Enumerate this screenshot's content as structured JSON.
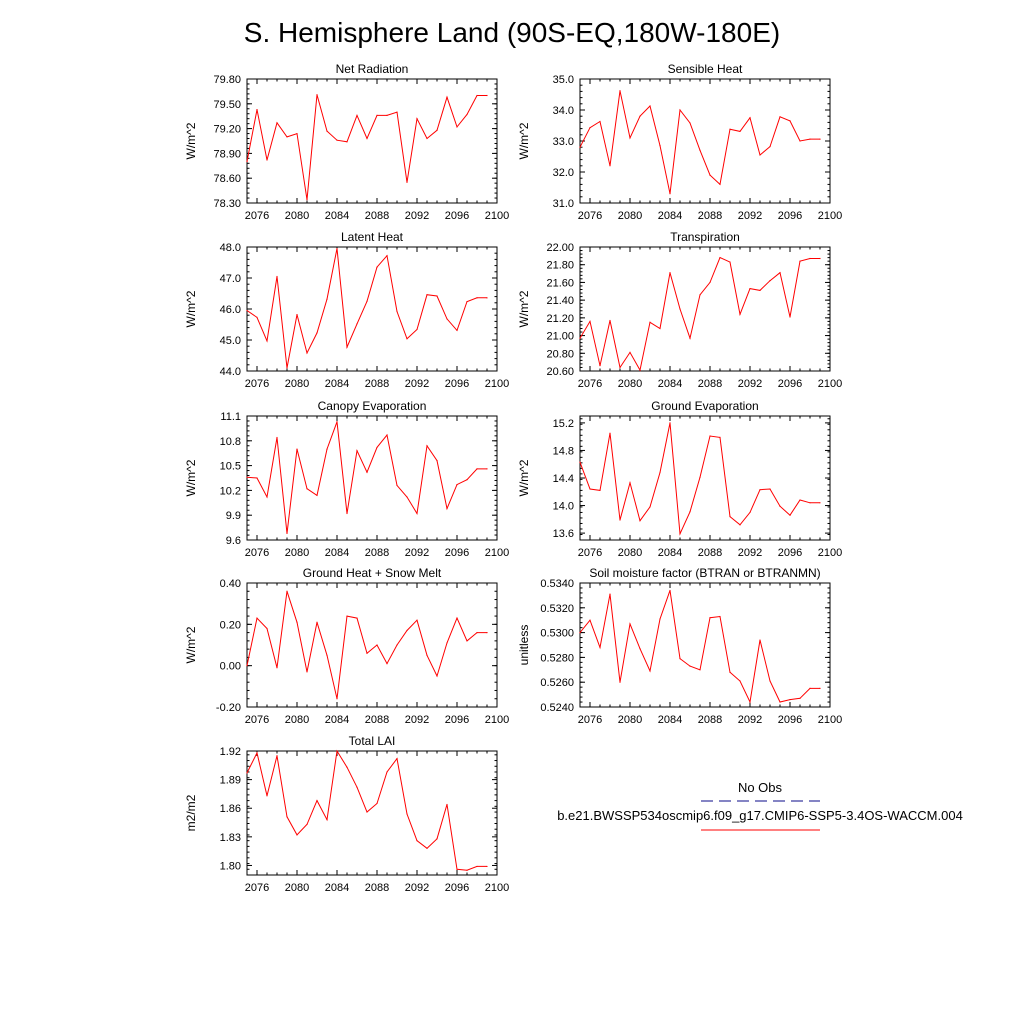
{
  "figure": {
    "title": "S. Hemisphere Land (90S-EQ,180W-180E)"
  },
  "legend": {
    "obs_label": "No Obs",
    "run_label": "b.e21.BWSSP534oscmip6.f09_g17.CMIP6-SSP5-3.4OS-WACCM.004",
    "obs_color": "#3a3aa0",
    "run_color": "#ff0000"
  },
  "chart_data": [
    {
      "type": "line",
      "title": "Net Radiation",
      "ylabel": "W/m^2",
      "xlim": [
        2075,
        2100
      ],
      "ylim": [
        78.3,
        79.8
      ],
      "yticks": [
        "78.30",
        "78.60",
        "78.90",
        "79.20",
        "79.50",
        "79.80"
      ],
      "xticks": [
        "2076",
        "2080",
        "2084",
        "2088",
        "2092",
        "2096",
        "2100"
      ],
      "series": [
        {
          "name": "b.e21.BWSSP534oscmip6.f09_g17.CMIP6-SSP5-3.4OS-WACCM.004",
          "x": [
            2075,
            2076,
            2077,
            2078,
            2079,
            2080,
            2081,
            2082,
            2083,
            2084,
            2085,
            2086,
            2087,
            2088,
            2089,
            2090,
            2091,
            2092,
            2093,
            2094,
            2095,
            2096,
            2097,
            2098,
            2099
          ],
          "values": [
            78.8,
            79.43,
            78.82,
            79.27,
            79.1,
            79.14,
            78.34,
            79.61,
            79.17,
            79.06,
            79.04,
            79.36,
            79.08,
            79.36,
            79.36,
            79.4,
            78.55,
            79.32,
            79.08,
            79.18,
            79.58,
            79.22,
            79.37,
            79.6,
            79.6
          ]
        }
      ]
    },
    {
      "type": "line",
      "title": "Sensible Heat",
      "ylabel": "W/m^2",
      "xlim": [
        2075,
        2100
      ],
      "ylim": [
        31.0,
        35.0
      ],
      "yticks": [
        "31.0",
        "32.0",
        "33.0",
        "34.0",
        "35.0"
      ],
      "xticks": [
        "2076",
        "2080",
        "2084",
        "2088",
        "2092",
        "2096",
        "2100"
      ],
      "series": [
        {
          "name": "b.e21.BWSSP534oscmip6.f09_g17.CMIP6-SSP5-3.4OS-WACCM.004",
          "x": [
            2075,
            2076,
            2077,
            2078,
            2079,
            2080,
            2081,
            2082,
            2083,
            2084,
            2085,
            2086,
            2087,
            2088,
            2089,
            2090,
            2091,
            2092,
            2093,
            2094,
            2095,
            2096,
            2097,
            2098,
            2099
          ],
          "values": [
            32.8,
            33.43,
            33.63,
            32.2,
            34.62,
            33.1,
            33.8,
            34.13,
            32.85,
            31.3,
            34.0,
            33.58,
            32.7,
            31.9,
            31.6,
            33.38,
            33.31,
            33.75,
            32.55,
            32.82,
            33.78,
            33.65,
            33.0,
            33.06,
            33.06
          ]
        }
      ]
    },
    {
      "type": "line",
      "title": "Latent Heat",
      "ylabel": "W/m^2",
      "xlim": [
        2075,
        2100
      ],
      "ylim": [
        44.0,
        48.0
      ],
      "yticks": [
        "44.0",
        "45.0",
        "46.0",
        "47.0",
        "48.0"
      ],
      "xticks": [
        "2076",
        "2080",
        "2084",
        "2088",
        "2092",
        "2096",
        "2100"
      ],
      "series": [
        {
          "name": "b.e21.BWSSP534oscmip6.f09_g17.CMIP6-SSP5-3.4OS-WACCM.004",
          "x": [
            2075,
            2076,
            2077,
            2078,
            2079,
            2080,
            2081,
            2082,
            2083,
            2084,
            2085,
            2086,
            2087,
            2088,
            2089,
            2090,
            2091,
            2092,
            2093,
            2094,
            2095,
            2096,
            2097,
            2098,
            2099
          ],
          "values": [
            45.95,
            45.73,
            44.97,
            47.05,
            44.1,
            45.82,
            44.58,
            45.23,
            46.32,
            47.95,
            44.77,
            45.52,
            46.25,
            47.35,
            47.72,
            45.92,
            45.04,
            45.34,
            46.46,
            46.42,
            45.68,
            45.31,
            46.24,
            46.36,
            46.36
          ]
        }
      ]
    },
    {
      "type": "line",
      "title": "Transpiration",
      "ylabel": "W/m^2",
      "xlim": [
        2075,
        2100
      ],
      "ylim": [
        20.6,
        22.0
      ],
      "yticks": [
        "20.60",
        "20.80",
        "21.00",
        "21.20",
        "21.40",
        "21.60",
        "21.80",
        "22.00"
      ],
      "xticks": [
        "2076",
        "2080",
        "2084",
        "2088",
        "2092",
        "2096",
        "2100"
      ],
      "series": [
        {
          "name": "b.e21.BWSSP534oscmip6.f09_g17.CMIP6-SSP5-3.4OS-WACCM.004",
          "x": [
            2075,
            2076,
            2077,
            2078,
            2079,
            2080,
            2081,
            2082,
            2083,
            2084,
            2085,
            2086,
            2087,
            2088,
            2089,
            2090,
            2091,
            2092,
            2093,
            2094,
            2095,
            2096,
            2097,
            2098,
            2099
          ],
          "values": [
            20.97,
            21.16,
            20.66,
            21.17,
            20.64,
            20.81,
            20.61,
            21.15,
            21.08,
            21.71,
            21.3,
            20.97,
            21.46,
            21.6,
            21.88,
            21.83,
            21.24,
            21.53,
            21.51,
            21.62,
            21.71,
            21.21,
            21.84,
            21.87,
            21.87
          ]
        }
      ]
    },
    {
      "type": "line",
      "title": "Canopy Evaporation",
      "ylabel": "W/m^2",
      "xlim": [
        2075,
        2100
      ],
      "ylim": [
        9.6,
        11.1
      ],
      "yticks": [
        "9.6",
        "9.9",
        "10.2",
        "10.5",
        "10.8",
        "11.1"
      ],
      "xticks": [
        "2076",
        "2080",
        "2084",
        "2088",
        "2092",
        "2096",
        "2100"
      ],
      "series": [
        {
          "name": "b.e21.BWSSP534oscmip6.f09_g17.CMIP6-SSP5-3.4OS-WACCM.004",
          "x": [
            2075,
            2076,
            2077,
            2078,
            2079,
            2080,
            2081,
            2082,
            2083,
            2084,
            2085,
            2086,
            2087,
            2088,
            2089,
            2090,
            2091,
            2092,
            2093,
            2094,
            2095,
            2096,
            2097,
            2098,
            2099
          ],
          "values": [
            10.36,
            10.35,
            10.12,
            10.84,
            9.68,
            10.7,
            10.22,
            10.14,
            10.7,
            11.03,
            9.92,
            10.68,
            10.42,
            10.72,
            10.87,
            10.26,
            10.12,
            9.92,
            10.74,
            10.56,
            9.98,
            10.27,
            10.33,
            10.46,
            10.46
          ]
        }
      ]
    },
    {
      "type": "line",
      "title": "Ground Evaporation",
      "ylabel": "W/m^2",
      "xlim": [
        2075,
        2100
      ],
      "ylim": [
        13.5,
        15.3
      ],
      "yticks": [
        "13.6",
        "14.0",
        "14.4",
        "14.8",
        "15.2"
      ],
      "xticks": [
        "2076",
        "2080",
        "2084",
        "2088",
        "2092",
        "2096",
        "2100"
      ],
      "series": [
        {
          "name": "b.e21.BWSSP534oscmip6.f09_g17.CMIP6-SSP5-3.4OS-WACCM.004",
          "x": [
            2075,
            2076,
            2077,
            2078,
            2079,
            2080,
            2081,
            2082,
            2083,
            2084,
            2085,
            2086,
            2087,
            2088,
            2089,
            2090,
            2091,
            2092,
            2093,
            2094,
            2095,
            2096,
            2097,
            2098,
            2099
          ],
          "values": [
            14.63,
            14.24,
            14.22,
            15.05,
            13.79,
            14.33,
            13.78,
            13.98,
            14.48,
            15.2,
            13.59,
            13.91,
            14.41,
            15.01,
            14.99,
            13.84,
            13.72,
            13.9,
            14.23,
            14.24,
            13.99,
            13.86,
            14.08,
            14.04,
            14.04
          ]
        }
      ]
    },
    {
      "type": "line",
      "title": "Ground Heat + Snow Melt",
      "ylabel": "W/m^2",
      "xlim": [
        2075,
        2100
      ],
      "ylim": [
        -0.2,
        0.4
      ],
      "yticks": [
        "-0.20",
        "0.00",
        "0.20",
        "0.40"
      ],
      "xticks": [
        "2076",
        "2080",
        "2084",
        "2088",
        "2092",
        "2096",
        "2100"
      ],
      "series": [
        {
          "name": "b.e21.BWSSP534oscmip6.f09_g17.CMIP6-SSP5-3.4OS-WACCM.004",
          "x": [
            2075,
            2076,
            2077,
            2078,
            2079,
            2080,
            2081,
            2082,
            2083,
            2084,
            2085,
            2086,
            2087,
            2088,
            2089,
            2090,
            2091,
            2092,
            2093,
            2094,
            2095,
            2096,
            2097,
            2098,
            2099
          ],
          "values": [
            0.0,
            0.23,
            0.18,
            -0.01,
            0.36,
            0.21,
            -0.03,
            0.21,
            0.05,
            -0.16,
            0.24,
            0.23,
            0.06,
            0.1,
            0.01,
            0.1,
            0.17,
            0.22,
            0.05,
            -0.05,
            0.11,
            0.23,
            0.12,
            0.16,
            0.16
          ]
        }
      ]
    },
    {
      "type": "line",
      "title": "Soil moisture factor (BTRAN or BTRANMN)",
      "ylabel": "unitless",
      "xlim": [
        2075,
        2100
      ],
      "ylim": [
        0.524,
        0.534
      ],
      "yticks": [
        "0.5240",
        "0.5260",
        "0.5280",
        "0.5300",
        "0.5320",
        "0.5340"
      ],
      "xticks": [
        "2076",
        "2080",
        "2084",
        "2088",
        "2092",
        "2096",
        "2100"
      ],
      "series": [
        {
          "name": "b.e21.BWSSP534oscmip6.f09_g17.CMIP6-SSP5-3.4OS-WACCM.004",
          "x": [
            2075,
            2076,
            2077,
            2078,
            2079,
            2080,
            2081,
            2082,
            2083,
            2084,
            2085,
            2086,
            2087,
            2088,
            2089,
            2090,
            2091,
            2092,
            2093,
            2094,
            2095,
            2096,
            2097,
            2098,
            2099
          ],
          "values": [
            0.53,
            0.531,
            0.5288,
            0.5331,
            0.526,
            0.5307,
            0.5287,
            0.5269,
            0.5311,
            0.5334,
            0.5279,
            0.5273,
            0.527,
            0.5312,
            0.5313,
            0.5268,
            0.5261,
            0.5244,
            0.5294,
            0.5261,
            0.5244,
            0.5246,
            0.5247,
            0.5255,
            0.5255
          ]
        }
      ]
    },
    {
      "type": "line",
      "title": "Total LAI",
      "ylabel": "m2/m2",
      "xlim": [
        2075,
        2100
      ],
      "ylim": [
        1.79,
        1.92
      ],
      "yticks": [
        "1.80",
        "1.83",
        "1.86",
        "1.89",
        "1.92"
      ],
      "xticks": [
        "2076",
        "2080",
        "2084",
        "2088",
        "2092",
        "2096",
        "2100"
      ],
      "series": [
        {
          "name": "b.e21.BWSSP534oscmip6.f09_g17.CMIP6-SSP5-3.4OS-WACCM.004",
          "x": [
            2075,
            2076,
            2077,
            2078,
            2079,
            2080,
            2081,
            2082,
            2083,
            2084,
            2085,
            2086,
            2087,
            2088,
            2089,
            2090,
            2091,
            2092,
            2093,
            2094,
            2095,
            2096,
            2097,
            2098,
            2099
          ],
          "values": [
            1.897,
            1.918,
            1.873,
            1.915,
            1.851,
            1.832,
            1.843,
            1.868,
            1.848,
            1.92,
            1.903,
            1.882,
            1.856,
            1.865,
            1.898,
            1.912,
            1.854,
            1.826,
            1.818,
            1.828,
            1.864,
            1.796,
            1.795,
            1.799,
            1.799
          ]
        }
      ]
    }
  ]
}
